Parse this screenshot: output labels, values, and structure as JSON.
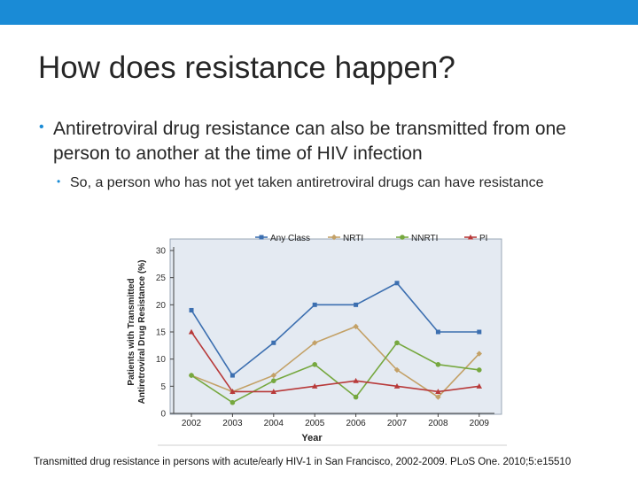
{
  "slide": {
    "title": "How does resistance happen?",
    "bullets": [
      {
        "level": 1,
        "text": "Antiretroviral drug resistance can also be transmitted from one person to another at the time of HIV infection"
      },
      {
        "level": 2,
        "text": "So, a person who has not yet taken antiretroviral drugs can have resistance"
      }
    ],
    "caption": "Transmitted drug resistance in persons with acute/early HIV-1 in San Francisco, 2002-2009. PLoS One. 2010;5:e15510",
    "colors": {
      "accent_bar": "#1a8bd6",
      "plot_background": "#e4eaf2"
    }
  },
  "chart_data": {
    "type": "line",
    "title": "",
    "xlabel": "Year",
    "ylabel": "Patients with Transmitted Antiretroviral Drug Resistance (%)",
    "ylabel_lines": [
      "Patients with Transmitted",
      "Antiretroviral Drug Resistance (%)"
    ],
    "categories": [
      "2002",
      "2003",
      "2004",
      "2005",
      "2006",
      "2007",
      "2008",
      "2009"
    ],
    "ylim": [
      0,
      30
    ],
    "yticks": [
      0,
      5,
      10,
      15,
      20,
      25,
      30
    ],
    "grid": false,
    "legend_position": "top",
    "series": [
      {
        "name": "Any Class",
        "color": "#3c6fb0",
        "marker": "square",
        "values": [
          19,
          7,
          13,
          20,
          20,
          24,
          15,
          15
        ]
      },
      {
        "name": "NRTI",
        "color": "#c3a167",
        "marker": "diamond",
        "values": [
          7,
          4,
          7,
          13,
          16,
          8,
          3,
          11
        ]
      },
      {
        "name": "NNRTI",
        "color": "#76a83f",
        "marker": "circle",
        "values": [
          7,
          2,
          6,
          9,
          3,
          13,
          9,
          8
        ]
      },
      {
        "name": "PI",
        "color": "#b83a3a",
        "marker": "triangle",
        "values": [
          15,
          4,
          4,
          5,
          6,
          5,
          4,
          5
        ]
      }
    ]
  }
}
